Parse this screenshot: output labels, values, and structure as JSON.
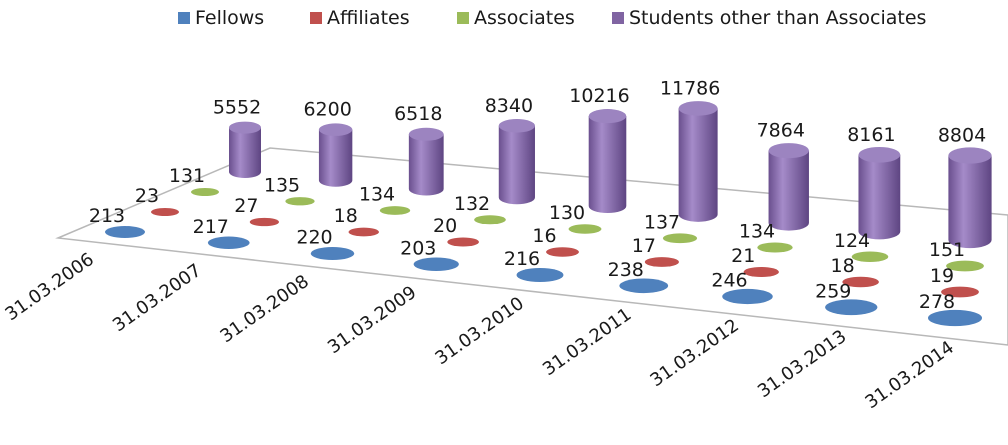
{
  "chart_data": {
    "type": "bar",
    "style": "3d-cylinder",
    "categories": [
      "31.03.2006",
      "31.03.2007",
      "31.03.2008",
      "31.03.2009",
      "31.03.2010",
      "31.03.2011",
      "31.03.2012",
      "31.03.2013",
      "31.03.2014"
    ],
    "series": [
      {
        "name": "Fellows",
        "color": "#4f81bd",
        "values": [
          213,
          217,
          220,
          203,
          216,
          238,
          246,
          259,
          278
        ]
      },
      {
        "name": "Affiliates",
        "color": "#c0504d",
        "values": [
          23,
          27,
          18,
          20,
          16,
          17,
          21,
          18,
          19
        ]
      },
      {
        "name": "Associates",
        "color": "#9bbb59",
        "values": [
          131,
          135,
          134,
          132,
          130,
          137,
          134,
          124,
          151
        ]
      },
      {
        "name": "Students other than Associates",
        "color": "#8064a2",
        "values": [
          5552,
          6200,
          6518,
          8340,
          10216,
          11786,
          7864,
          8161,
          8804
        ]
      }
    ],
    "title": "",
    "xlabel": "",
    "ylabel": "",
    "legend": "top",
    "grid": false
  }
}
